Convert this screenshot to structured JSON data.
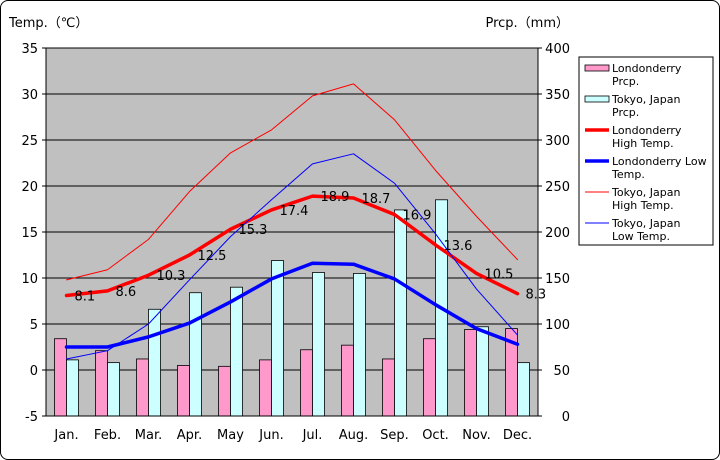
{
  "chart_data": {
    "type": "bar+line",
    "categories": [
      "Jan.",
      "Feb.",
      "Mar.",
      "Apr.",
      "May",
      "Jun.",
      "Jul.",
      "Aug.",
      "Sep.",
      "Oct.",
      "Nov.",
      "Dec."
    ],
    "left_axis": {
      "label": "Temp.（℃）",
      "min": -5,
      "max": 35,
      "ticks": [
        "-5",
        "0",
        "5",
        "10",
        "15",
        "20",
        "25",
        "30",
        "35"
      ]
    },
    "right_axis": {
      "label": "Prcp.（mm）",
      "min": 0,
      "max": 400,
      "ticks": [
        "0",
        "50",
        "100",
        "150",
        "200",
        "250",
        "300",
        "350",
        "400"
      ]
    },
    "bar_series": [
      {
        "name": "Londonderry Prcp.",
        "legend_lines": [
          "Londonderry",
          "Prcp."
        ],
        "color": "#ff99cc",
        "values": [
          84,
          71,
          62,
          55,
          54,
          61,
          72,
          77,
          62,
          84,
          94,
          95
        ]
      },
      {
        "name": "Tokyo, Japan Prcp.",
        "legend_lines": [
          "Tokyo, Japan",
          "Prcp."
        ],
        "color": "#ccffff",
        "values": [
          61,
          58,
          116,
          134,
          140,
          169,
          156,
          155,
          224,
          235,
          97,
          58
        ]
      }
    ],
    "line_series": [
      {
        "name": "Londonderry High Temp.",
        "legend_lines": [
          "Londonderry",
          "High Temp."
        ],
        "color": "#ff0000",
        "width": 3.5,
        "values": [
          8.1,
          8.6,
          10.3,
          12.5,
          15.3,
          17.4,
          18.9,
          18.7,
          16.9,
          13.6,
          10.5,
          8.3
        ],
        "labels": [
          "8.1",
          "8.6",
          "10.3",
          "12.5",
          "15.3",
          "17.4",
          "18.9",
          "18.7",
          "16.9",
          "13.6",
          "10.5",
          "8.3"
        ]
      },
      {
        "name": "Londonderry Low Temp.",
        "legend_lines": [
          "Londonderry Low",
          "Temp."
        ],
        "color": "#0000ff",
        "width": 3.5,
        "values": [
          2.5,
          2.5,
          3.6,
          5.1,
          7.4,
          9.9,
          11.6,
          11.5,
          9.9,
          7.1,
          4.5,
          2.8
        ]
      },
      {
        "name": "Tokyo, Japan High Temp.",
        "legend_lines": [
          "Tokyo, Japan",
          "High Temp."
        ],
        "color": "#ff0000",
        "width": 1,
        "values": [
          9.8,
          10.9,
          14.2,
          19.4,
          23.6,
          26.1,
          29.8,
          31.1,
          27.2,
          21.7,
          16.7,
          12.0
        ]
      },
      {
        "name": "Tokyo, Japan Low Temp.",
        "legend_lines": [
          "Tokyo, Japan",
          "Low Temp."
        ],
        "color": "#0000ff",
        "width": 1,
        "values": [
          1.2,
          2.1,
          5.0,
          9.8,
          14.5,
          18.5,
          22.4,
          23.5,
          20.3,
          14.8,
          8.8,
          3.8
        ]
      }
    ],
    "plot_background": "#c0c0c0"
  }
}
